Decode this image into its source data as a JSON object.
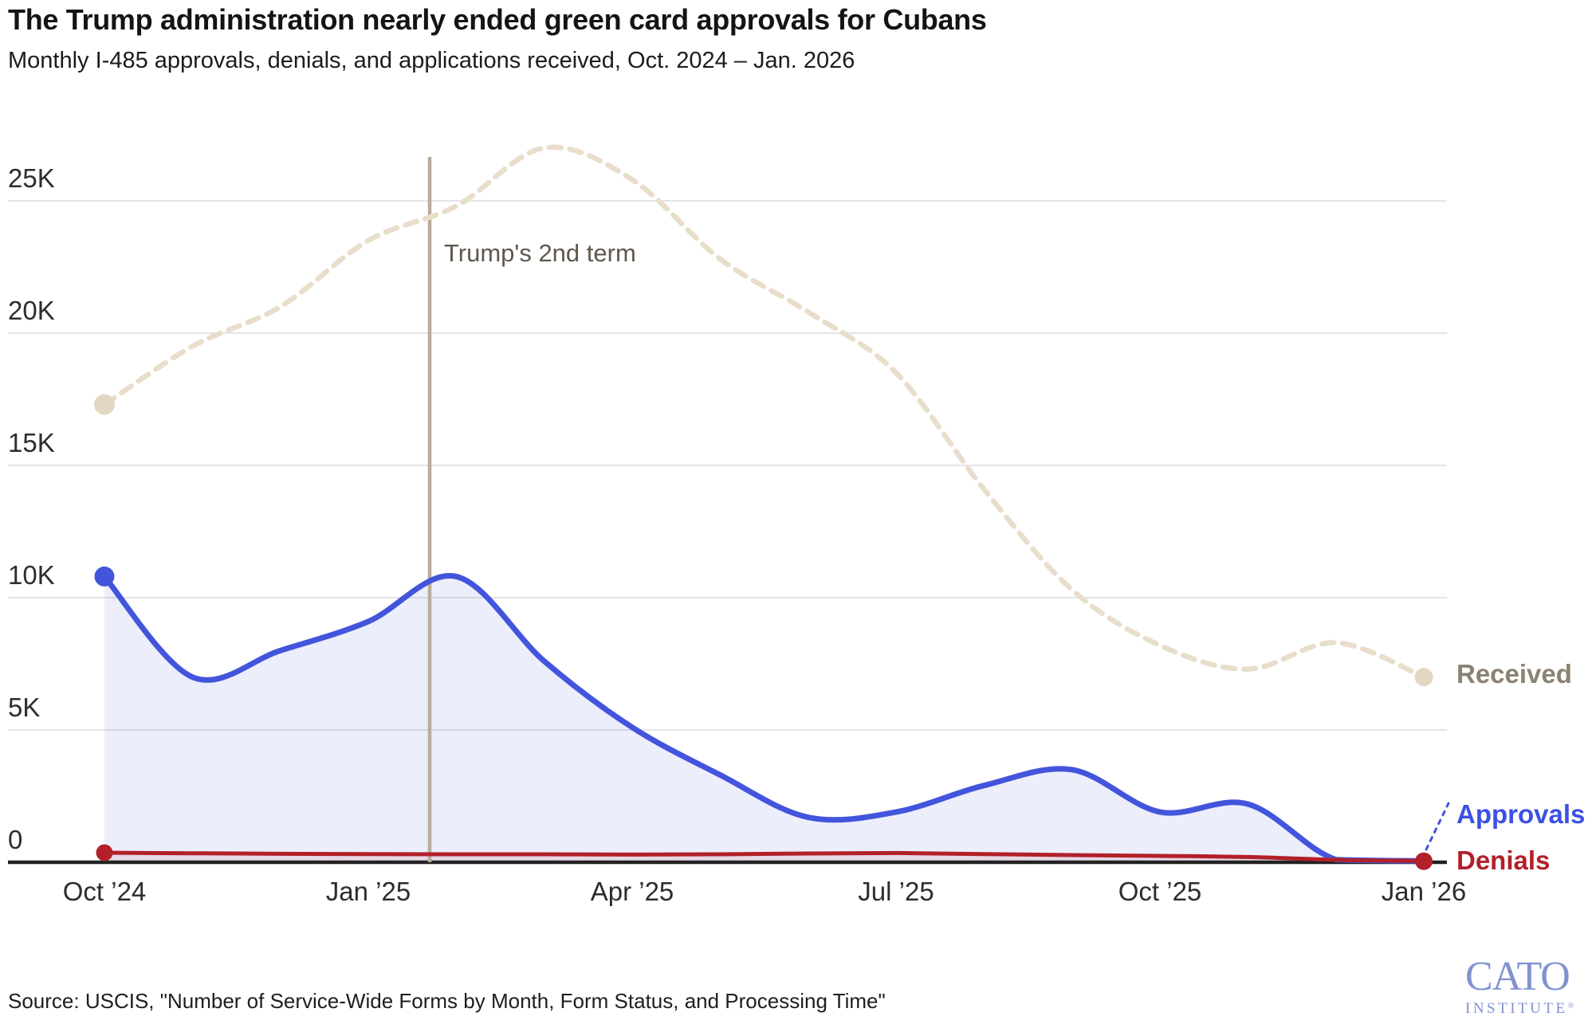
{
  "header": {
    "title": "The Trump administration nearly ended green card approvals for Cubans",
    "subtitle": "Monthly I-485 approvals, denials, and applications received, Oct. 2024 – Jan. 2026"
  },
  "annotation": {
    "label": "Trump's 2nd term"
  },
  "source": {
    "text": "Source: USCIS, \"Number of Service-Wide Forms by Month, Form Status, and Processing Time\""
  },
  "logo": {
    "name": "CATO",
    "sub": "INSTITUTE",
    "reg": "®"
  },
  "chart_data": {
    "type": "line",
    "title": "The Trump administration nearly ended green card approvals for Cubans",
    "subtitle": "Monthly I-485 approvals, denials, and applications received, Oct. 2024 – Jan. 2026",
    "x": [
      "Oct 2024",
      "Nov 2024",
      "Dec 2024",
      "Jan 2025",
      "Feb 2025",
      "Mar 2025",
      "Apr 2025",
      "May 2025",
      "Jun 2025",
      "Jul 2025",
      "Aug 2025",
      "Sep 2025",
      "Oct 2025",
      "Nov 2025",
      "Dec 2025",
      "Jan 2026"
    ],
    "series": [
      {
        "name": "Received",
        "style": "dashed",
        "color": "#e9ddcb",
        "dot_color": "#e3d7c3",
        "label_color": "#8b8273",
        "start_dot": true,
        "end_dot": true,
        "values": [
          17300,
          19500,
          21000,
          23500,
          24800,
          27000,
          25800,
          22800,
          20800,
          18500,
          14100,
          10300,
          8200,
          7300,
          8300,
          7000
        ]
      },
      {
        "name": "Approvals",
        "style": "solid",
        "color": "#4355dc",
        "fill": "rgba(67,85,220,0.10)",
        "label_color": "#3c50e3",
        "start_dot": true,
        "end_dot": false,
        "values": [
          10800,
          7000,
          8000,
          9100,
          10800,
          7600,
          5100,
          3300,
          1700,
          1900,
          2900,
          3500,
          1900,
          2200,
          100,
          50
        ]
      },
      {
        "name": "Denials",
        "style": "solid",
        "color": "#b2202a",
        "fill": "rgba(178,32,42,0.10)",
        "label_color": "#b2202a",
        "start_dot": true,
        "end_dot": true,
        "values": [
          360,
          340,
          320,
          310,
          300,
          300,
          290,
          300,
          330,
          350,
          310,
          270,
          240,
          200,
          90,
          40
        ]
      }
    ],
    "yticks": [
      {
        "label": "25K",
        "value": 25000
      },
      {
        "label": "20K",
        "value": 20000
      },
      {
        "label": "15K",
        "value": 15000
      },
      {
        "label": "10K",
        "value": 10000
      },
      {
        "label": "5K",
        "value": 5000
      },
      {
        "label": "0",
        "value": 0
      }
    ],
    "xticks": [
      {
        "label": "Oct ’24",
        "index": 0
      },
      {
        "label": "Jan ’25",
        "index": 3
      },
      {
        "label": "Apr ’25",
        "index": 6
      },
      {
        "label": "Jul ’25",
        "index": 9
      },
      {
        "label": "Oct ’25",
        "index": 12
      },
      {
        "label": "Jan ’26",
        "index": 15
      }
    ],
    "ylim": [
      0,
      27500
    ],
    "grid": "horizontal",
    "legend_position": "right-end-of-lines",
    "annotation": {
      "text": "Trump's 2nd term",
      "at": "Jan 20, 2025"
    },
    "colors": {
      "gridline": "#e5e5e5",
      "axis": "#222222",
      "annotation_line": "#b9ac9b",
      "background": "#ffffff"
    }
  }
}
